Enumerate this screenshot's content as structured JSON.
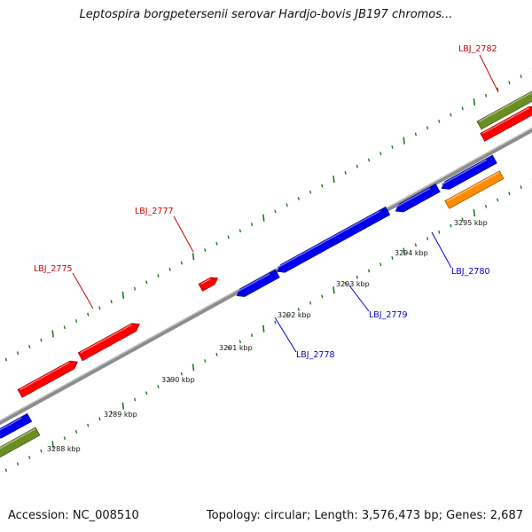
{
  "title": "Leptospira borgpetersenii serovar Hardjo-bovis JB197 chromos...",
  "footer": {
    "accession": "Accession: NC_008510",
    "summary": "Topology: circular; Length: 3,576,473 bp; Genes: 2,687"
  },
  "ruler": {
    "tick_labels": [
      "3288 kbp",
      "3289 kbp",
      "3290 kbp",
      "3291 kbp",
      "3292 kbp",
      "3293 kbp",
      "3294 kbp",
      "3295 kbp"
    ]
  },
  "gene_labels": [
    {
      "id": "LBJ_2775",
      "strand": "forward"
    },
    {
      "id": "LBJ_2777",
      "strand": "forward"
    },
    {
      "id": "LBJ_2782",
      "strand": "forward"
    },
    {
      "id": "LBJ_2778",
      "strand": "reverse"
    },
    {
      "id": "LBJ_2779",
      "strand": "reverse"
    },
    {
      "id": "LBJ_2780",
      "strand": "reverse"
    }
  ],
  "colors": {
    "forward_gene": "#ff0000",
    "reverse_gene": "#0000ee",
    "label_forward": "#cc0000",
    "label_reverse": "#0000cc",
    "olive_track": "#6b8e23",
    "orange_track": "#ff8c00",
    "backbone": "#8c8c8c",
    "tick_green": "#1f7a1f"
  }
}
